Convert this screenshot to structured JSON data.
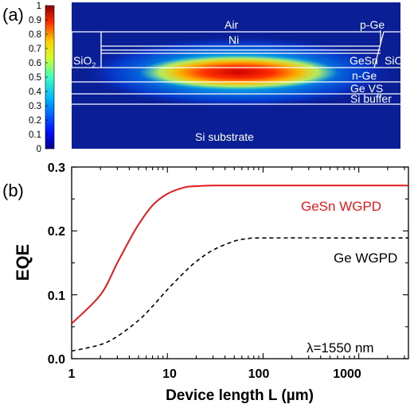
{
  "panel_a": {
    "label": "(a)",
    "colorbar_ticks": [
      "1",
      "0.9",
      "0.8",
      "0.7",
      "0.6",
      "0.5",
      "0.4",
      "0.3",
      "0.2",
      "0.1",
      "0"
    ],
    "layers": {
      "air": "Air",
      "p_ge": "p-Ge",
      "ni": "Ni",
      "sio2_left": "SiO",
      "sio2_right": "SiO",
      "sio2_sub": "2",
      "gesn": "GeSn",
      "n_ge": "n-Ge",
      "ge_vs": "Ge VS",
      "si_buffer": "Si buffer",
      "si_substrate": "Si substrate"
    },
    "colors": {
      "background": "#0a1e96",
      "peak": "#d40000",
      "structure_lines": "#ffffff"
    }
  },
  "panel_b": {
    "label": "(b)",
    "colors": {
      "gesn": "#e41a1c",
      "ge": "#000000"
    },
    "chart_data": {
      "type": "line",
      "xscale": "log",
      "xlabel": "Device length L (µm)",
      "ylabel": "EQE",
      "xlim": [
        1,
        3300
      ],
      "ylim": [
        0,
        0.3
      ],
      "x_ticks": [
        1,
        10,
        100,
        1000
      ],
      "x_tick_labels": [
        "1",
        "10",
        "100",
        "1000"
      ],
      "y_ticks": [
        0,
        0.1,
        0.2,
        0.3
      ],
      "y_tick_labels": [
        "0.0",
        "0.1",
        "0.2",
        "0.3"
      ],
      "annotation": "λ=1550 nm",
      "series": [
        {
          "name": "GeSn WGPD",
          "style": "solid",
          "x": [
            1,
            2,
            3,
            4,
            5,
            7,
            10,
            15,
            20,
            30,
            50,
            100,
            1000,
            3300
          ],
          "y": [
            0.055,
            0.1,
            0.15,
            0.185,
            0.21,
            0.24,
            0.258,
            0.268,
            0.27,
            0.271,
            0.271,
            0.271,
            0.271,
            0.271
          ]
        },
        {
          "name": "Ge WGPD",
          "style": "dashed",
          "x": [
            1,
            2,
            3,
            5,
            7,
            10,
            15,
            20,
            30,
            50,
            70,
            100,
            1000,
            3300
          ],
          "y": [
            0.012,
            0.022,
            0.035,
            0.06,
            0.082,
            0.108,
            0.135,
            0.152,
            0.17,
            0.184,
            0.188,
            0.189,
            0.189,
            0.189
          ]
        }
      ]
    }
  }
}
